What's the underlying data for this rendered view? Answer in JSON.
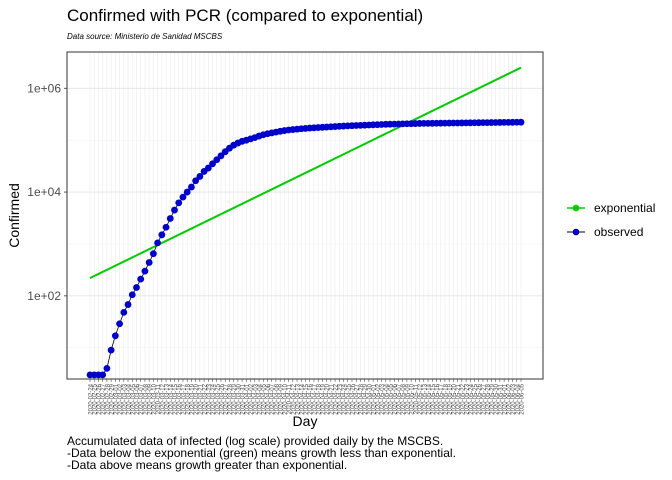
{
  "title": "Confirmed with PCR (compared to exponential)",
  "subtitle": "Data source: Ministerio de Sanidad MSCBS",
  "caption": [
    "Accumulated data of infected (log scale) provided daily by the MSCBS.",
    "-Data below the exponential (green) means growth less than exponential.",
    "-Data above means growth greater than exponential."
  ],
  "chart_data": {
    "type": "line",
    "title": "Confirmed with PCR (compared to exponential)",
    "xlabel": "Day",
    "ylabel": "Confirmed",
    "y_scale": "log10",
    "y_ticks": [
      100,
      10000,
      1000000
    ],
    "y_tick_labels": [
      "1e+02",
      "1e+04",
      "1e+06"
    ],
    "ylim": [
      2.5,
      5000000
    ],
    "grid": true,
    "legend_position": "right",
    "x": [
      "2020-02-24",
      "2020-02-25",
      "2020-02-26",
      "2020-02-27",
      "2020-02-28",
      "2020-02-29",
      "2020-03-01",
      "2020-03-02",
      "2020-03-03",
      "2020-03-04",
      "2020-03-05",
      "2020-03-06",
      "2020-03-07",
      "2020-03-08",
      "2020-03-09",
      "2020-03-10",
      "2020-03-11",
      "2020-03-12",
      "2020-03-13",
      "2020-03-14",
      "2020-03-15",
      "2020-03-16",
      "2020-03-17",
      "2020-03-18",
      "2020-03-19",
      "2020-03-20",
      "2020-03-21",
      "2020-03-22",
      "2020-03-23",
      "2020-03-24",
      "2020-03-25",
      "2020-03-26",
      "2020-03-27",
      "2020-03-28",
      "2020-03-29",
      "2020-03-30",
      "2020-03-31",
      "2020-04-01",
      "2020-04-02",
      "2020-04-03",
      "2020-04-04",
      "2020-04-05",
      "2020-04-06",
      "2020-04-07",
      "2020-04-08",
      "2020-04-09",
      "2020-04-10",
      "2020-04-11",
      "2020-04-12",
      "2020-04-13",
      "2020-04-14",
      "2020-04-15",
      "2020-04-16",
      "2020-04-17",
      "2020-04-18",
      "2020-04-19",
      "2020-04-20",
      "2020-04-21",
      "2020-04-22",
      "2020-04-23",
      "2020-04-24",
      "2020-04-25",
      "2020-04-26",
      "2020-04-27",
      "2020-04-28",
      "2020-04-29",
      "2020-04-30",
      "2020-05-01",
      "2020-05-02",
      "2020-05-03",
      "2020-05-04",
      "2020-05-05",
      "2020-05-06",
      "2020-05-07",
      "2020-05-08",
      "2020-05-09",
      "2020-05-10",
      "2020-05-11",
      "2020-05-12",
      "2020-05-13",
      "2020-05-14",
      "2020-05-15",
      "2020-05-16",
      "2020-05-17",
      "2020-05-18",
      "2020-05-19",
      "2020-05-20",
      "2020-05-21",
      "2020-05-22",
      "2020-05-23",
      "2020-05-24",
      "2020-05-25",
      "2020-05-26",
      "2020-05-27",
      "2020-05-28",
      "2020-05-29",
      "2020-05-30",
      "2020-05-31",
      "2020-06-01",
      "2020-06-02",
      "2020-06-03",
      "2020-06-04",
      "2020-06-05"
    ],
    "series": [
      {
        "name": "exponential",
        "color": "#00CC00",
        "start": 220,
        "end": 2500000
      },
      {
        "name": "observed",
        "color": "#0000CC",
        "values": [
          3,
          3,
          3,
          3,
          4,
          9,
          17,
          29,
          48,
          68,
          105,
          145,
          210,
          300,
          440,
          650,
          1050,
          1500,
          2100,
          3100,
          4500,
          6200,
          8000,
          10000,
          12500,
          16500,
          20000,
          25000,
          29000,
          35000,
          42000,
          50000,
          60000,
          70000,
          80000,
          88000,
          95000,
          100000,
          106000,
          112000,
          120000,
          127000,
          133000,
          138000,
          143000,
          148000,
          153000,
          157000,
          160000,
          163000,
          166000,
          168500,
          171000,
          173000,
          175000,
          177000,
          179000,
          181000,
          183000,
          185000,
          187000,
          188500,
          190000,
          191500,
          193000,
          194500,
          196000,
          197500,
          199000,
          200500,
          202000,
          203000,
          204000,
          205000,
          206000,
          207000,
          208000,
          209000,
          210000,
          210500,
          211000,
          211500,
          212000,
          212500,
          213000,
          213500,
          214000,
          214500,
          215000,
          215500,
          216000,
          216500,
          217000,
          217500,
          218000,
          218500,
          219000,
          219500,
          220000,
          220500,
          221000,
          221500,
          222000
        ]
      }
    ]
  }
}
